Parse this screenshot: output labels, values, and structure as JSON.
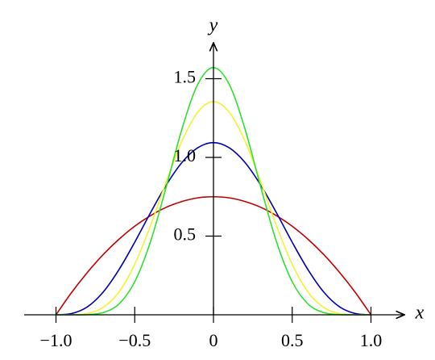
{
  "chart_data": {
    "type": "line",
    "x_label": "x",
    "y_label": "y",
    "x": [
      -1.0,
      -0.9,
      -0.8,
      -0.7,
      -0.6,
      -0.5,
      -0.4,
      -0.3,
      -0.2,
      -0.1,
      0.0,
      0.1,
      0.2,
      0.3,
      0.4,
      0.5,
      0.6,
      0.7,
      0.8,
      0.9,
      1.0
    ],
    "series": [
      {
        "color": "#c00000",
        "values": [
          0,
          0.143,
          0.27,
          0.383,
          0.48,
          0.563,
          0.63,
          0.683,
          0.72,
          0.743,
          0.75,
          0.743,
          0.72,
          0.683,
          0.63,
          0.563,
          0.48,
          0.383,
          0.27,
          0.143,
          0
        ]
      },
      {
        "color": "#0000b4",
        "values": [
          0,
          0.008,
          0.051,
          0.145,
          0.287,
          0.461,
          0.648,
          0.824,
          0.968,
          1.061,
          1.094,
          1.061,
          0.968,
          0.824,
          0.648,
          0.461,
          0.287,
          0.145,
          0.051,
          0.008,
          0
        ]
      },
      {
        "color": "#f2f230",
        "values": [
          0,
          0.0003,
          0.008,
          0.047,
          0.145,
          0.321,
          0.566,
          0.845,
          1.104,
          1.287,
          1.354,
          1.287,
          1.104,
          0.845,
          0.566,
          0.321,
          0.145,
          0.047,
          0.008,
          0.0003,
          0
        ]
      },
      {
        "color": "#2ee02e",
        "values": [
          0,
          0,
          0.001,
          0.014,
          0.069,
          0.21,
          0.464,
          0.812,
          1.181,
          1.464,
          1.571,
          1.464,
          1.181,
          0.812,
          0.464,
          0.21,
          0.069,
          0.014,
          0.001,
          0,
          0
        ]
      }
    ],
    "xlim": [
      -1.2,
      1.2
    ],
    "ylim": [
      0,
      1.72
    ],
    "xticks": [
      {
        "value": -1.0,
        "label": "−1.0"
      },
      {
        "value": -0.5,
        "label": "−0.5"
      },
      0,
      0.5,
      {
        "value": 1.0,
        "label": "1.0"
      }
    ],
    "yticks": [
      0.5,
      {
        "value": 1.0,
        "label": "1.0"
      },
      1.5
    ]
  }
}
